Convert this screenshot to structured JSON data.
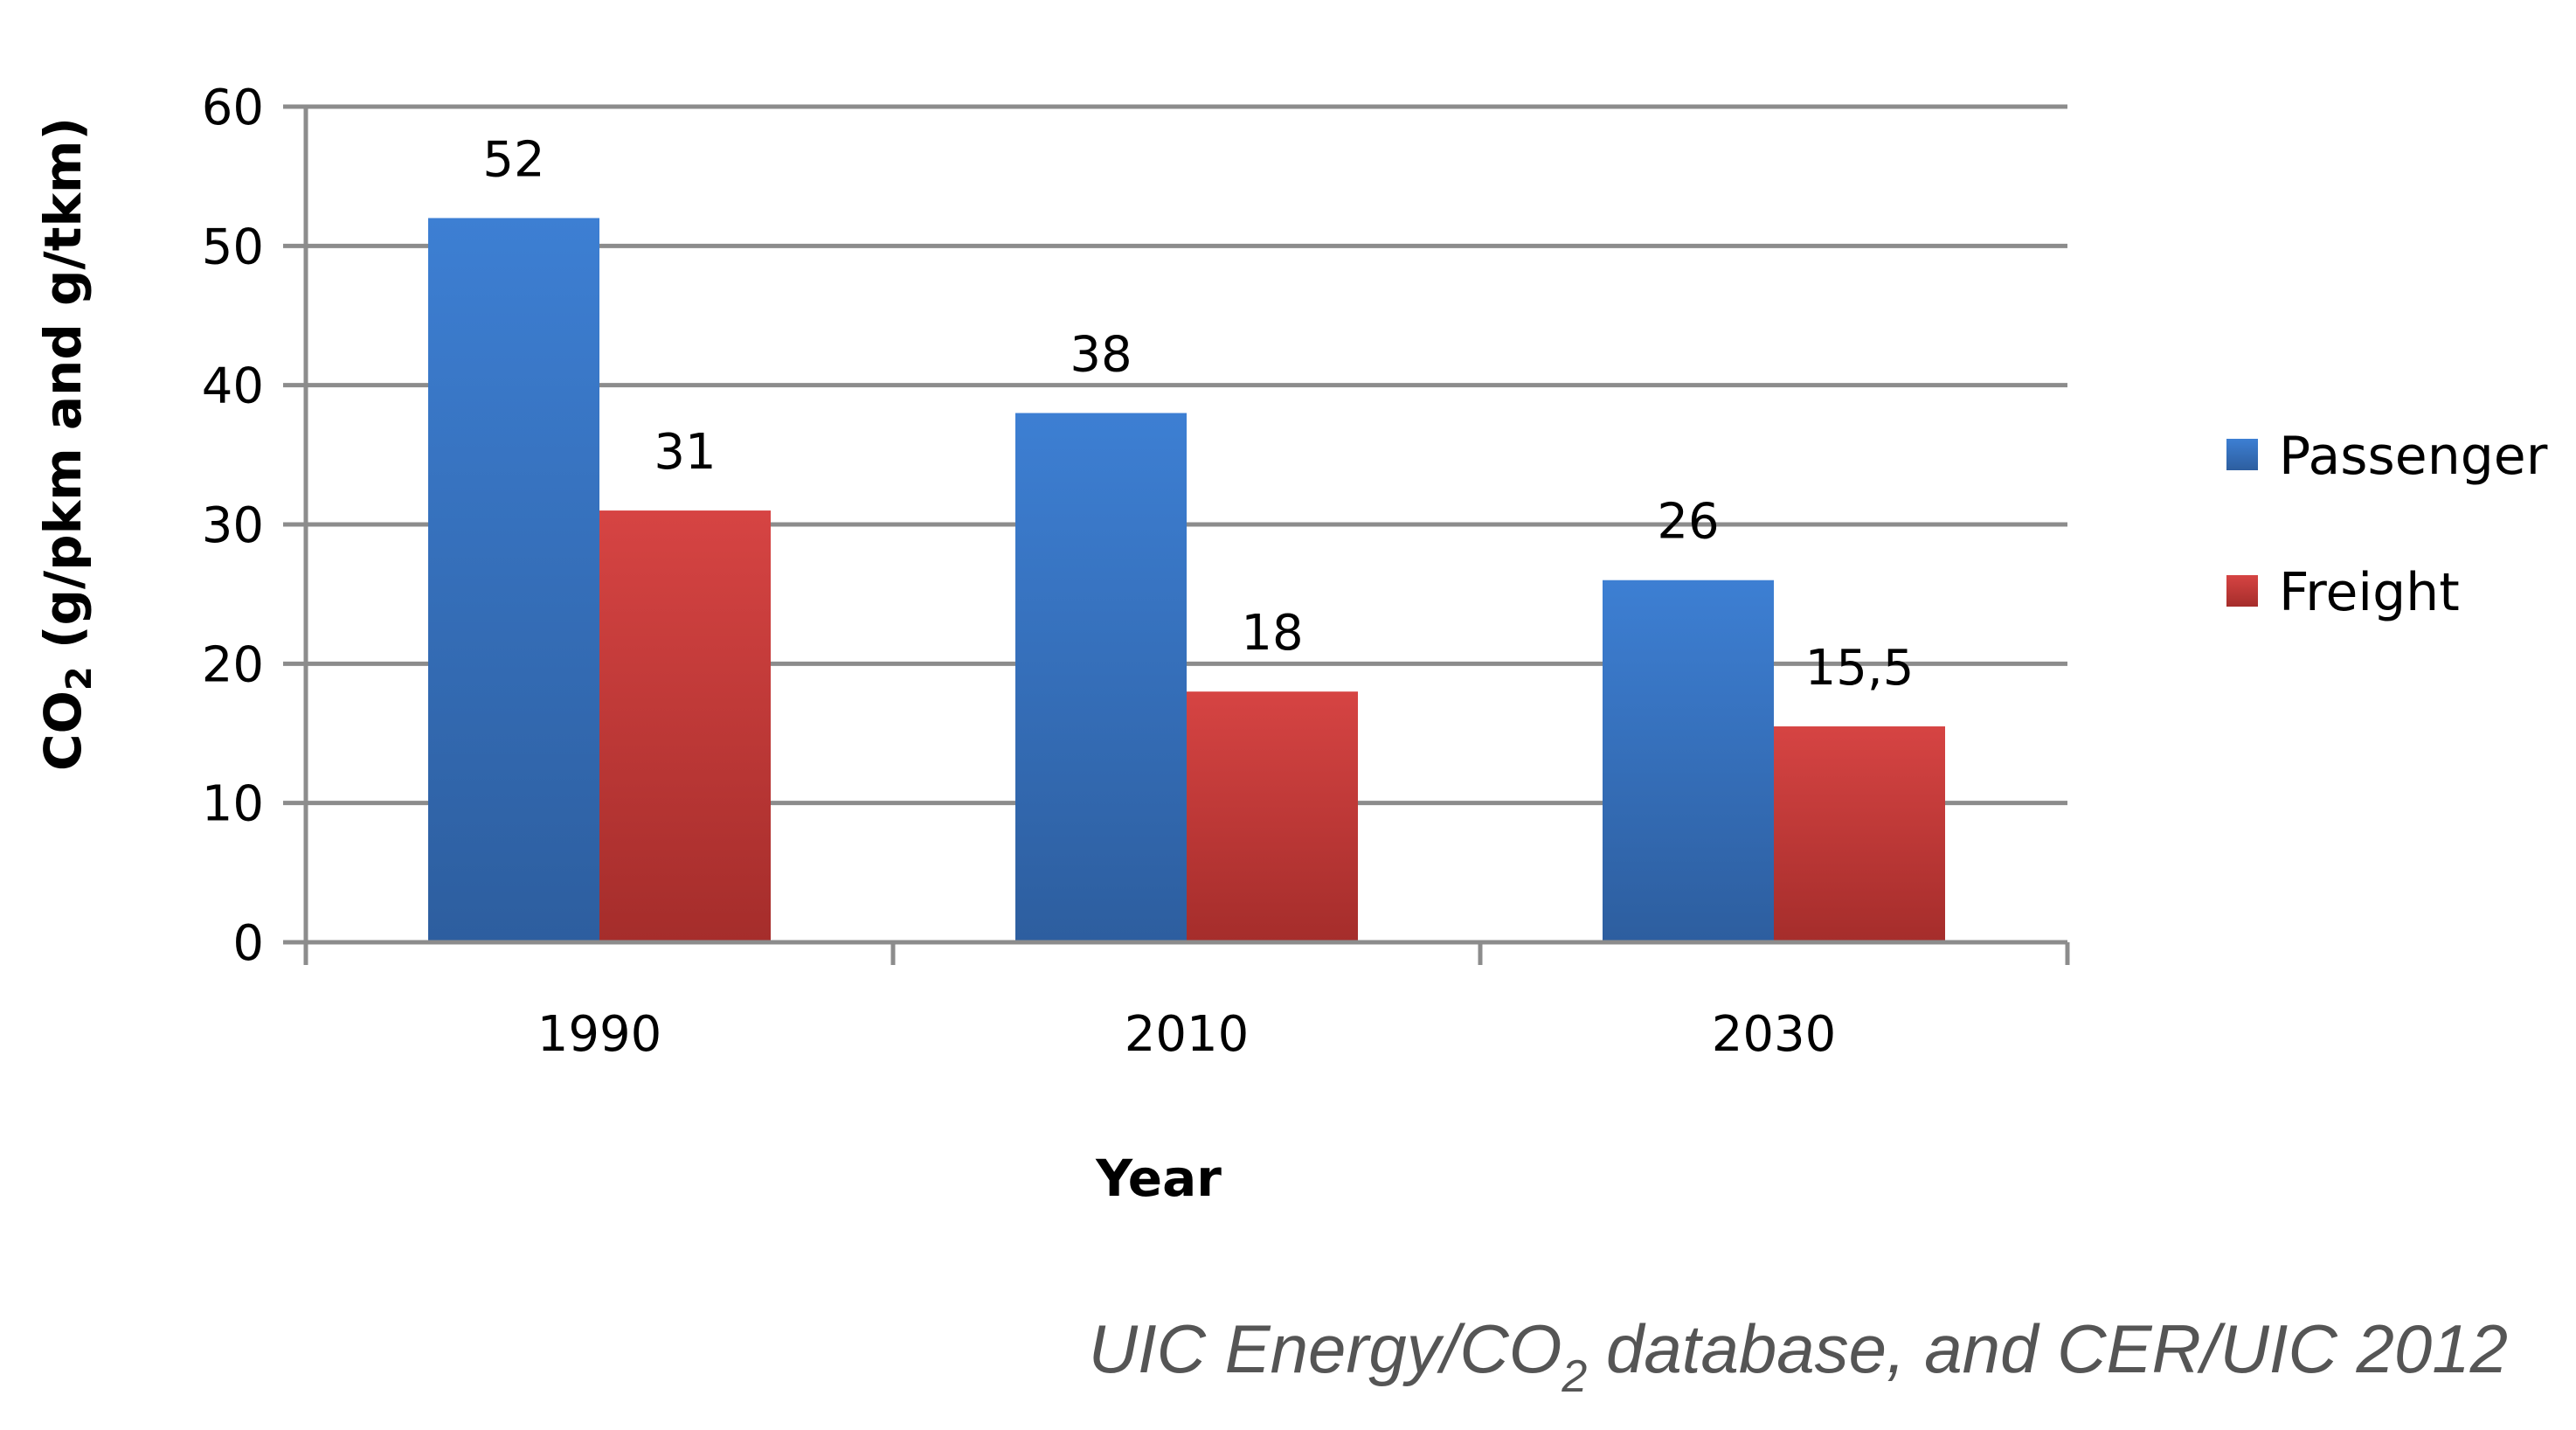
{
  "chart_data": {
    "type": "bar",
    "categories": [
      "1990",
      "2010",
      "2030"
    ],
    "series": [
      {
        "name": "Passenger",
        "values": [
          52,
          38,
          26
        ],
        "labels": [
          "52",
          "38",
          "26"
        ],
        "color": "#3a74c4"
      },
      {
        "name": "Freight",
        "values": [
          31,
          18,
          15.5
        ],
        "labels": [
          "31",
          "18",
          "15,5"
        ],
        "color": "#c93a38"
      }
    ],
    "xlabel": "Year",
    "ylabel": {
      "prefix": "CO",
      "subscript": "2",
      "suffix": " (g/pkm and g/tkm)"
    },
    "ylim": [
      0,
      60
    ],
    "yticks": [
      0,
      10,
      20,
      30,
      40,
      50,
      60
    ],
    "grid": true,
    "legend_position": "right",
    "annotation": {
      "prefix": "UIC Energy/CO",
      "subscript": "2",
      "suffix": " database, and CER/UIC 2012"
    }
  }
}
